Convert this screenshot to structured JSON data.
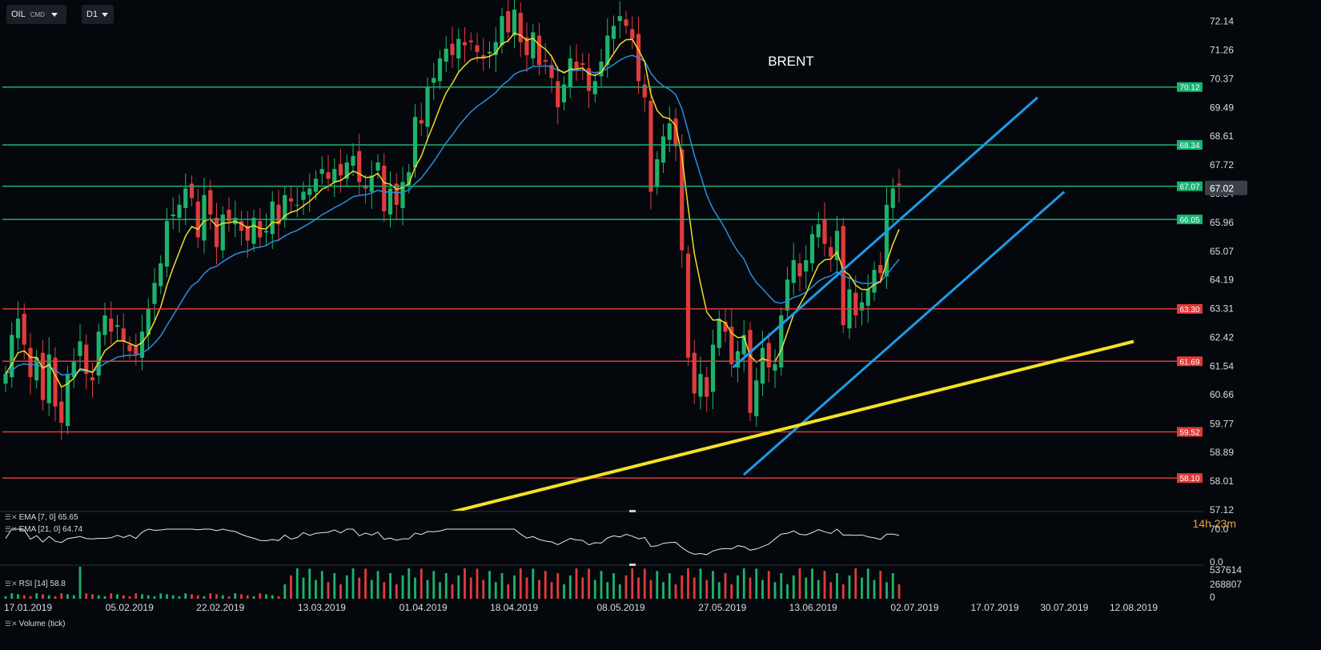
{
  "toolbar": {
    "symbol": "OIL",
    "symbol_tag": "CMD",
    "timeframe": "D1"
  },
  "timer": {
    "hours": "14",
    "h": "h",
    "minutes": "23",
    "m": "m"
  },
  "indicators": {
    "ema7": "EMA [7, 0]  65.65",
    "ema21": "EMA [21, 0]  64.74",
    "rsi": "RSI [14]  58.8",
    "volume": "Volume (tick)"
  },
  "chart_data": {
    "type": "candlestick",
    "title": "BRENT",
    "symbol": "OIL",
    "timeframe": "D1",
    "ylim": [
      57.12,
      72.5
    ],
    "y_ticks": [
      "72.14",
      "71.26",
      "70.37",
      "69.49",
      "68.61",
      "67.72",
      "66.84",
      "65.96",
      "65.07",
      "64.19",
      "63.31",
      "62.42",
      "61.54",
      "60.66",
      "59.77",
      "58.89",
      "58.01",
      "57.12"
    ],
    "x_ticks": [
      "17.01.2019",
      "05.02.2019",
      "22.02.2019",
      "13.03.2019",
      "01.04.2019",
      "18.04.2019",
      "08.05.2019",
      "27.05.2019",
      "13.06.2019",
      "02.07.2019",
      "17.07.2019",
      "30.07.2019",
      "12.08.2019"
    ],
    "current_price": "67.02",
    "horizontal_levels": [
      {
        "value": 70.12,
        "label": "70.12",
        "color": "#18b273"
      },
      {
        "value": 68.34,
        "label": "68.34",
        "color": "#18b273"
      },
      {
        "value": 67.07,
        "label": "67.07",
        "color": "#18b273"
      },
      {
        "value": 66.05,
        "label": "66.05",
        "color": "#18b273"
      },
      {
        "value": 63.3,
        "label": "63.30",
        "color": "#e03a3a"
      },
      {
        "value": 61.69,
        "label": "61.69",
        "color": "#e03a3a"
      },
      {
        "value": 59.52,
        "label": "59.52",
        "color": "#e03a3a"
      },
      {
        "value": 58.1,
        "label": "58.10",
        "color": "#e03a3a"
      }
    ],
    "closes": [
      61.3,
      62.5,
      63.0,
      62.2,
      61.2,
      61.8,
      60.5,
      61.9,
      60.3,
      59.8,
      61.3,
      61.7,
      62.3,
      61.3,
      61.1,
      62.6,
      63.1,
      62.6,
      62.8,
      62.3,
      62.0,
      61.9,
      62.6,
      63.3,
      64.1,
      64.7,
      66.0,
      66.2,
      66.5,
      67.0,
      66.7,
      65.5,
      66.8,
      66.2,
      65.2,
      66.2,
      66.0,
      66.1,
      65.7,
      65.4,
      66.1,
      65.5,
      65.7,
      66.6,
      65.9,
      66.8,
      66.6,
      66.5,
      66.9,
      67.0,
      67.3,
      67.6,
      67.3,
      67.6,
      67.4,
      67.8,
      68.0,
      67.2,
      67.0,
      67.4,
      67.8,
      66.3,
      67.0,
      66.5,
      67.2,
      67.5,
      69.2,
      69.0,
      70.1,
      70.4,
      71.0,
      71.3,
      71.1,
      71.6,
      71.4,
      71.5,
      71.2,
      71.0,
      71.2,
      71.5,
      72.3,
      71.8,
      72.5,
      71.5,
      71.1,
      71.8,
      70.8,
      70.9,
      70.4,
      69.5,
      70.2,
      71.0,
      70.7,
      70.8,
      70.0,
      70.3,
      70.9,
      71.7,
      72.0,
      72.3,
      72.0,
      71.6,
      70.3,
      69.8,
      66.9,
      67.9,
      68.6,
      69.0,
      68.3,
      65.1,
      61.8,
      60.7,
      61.3,
      60.6,
      62.2,
      63.0,
      62.6,
      61.6,
      62.0,
      62.5,
      60.1,
      61.1,
      62.1,
      61.5,
      61.6,
      63.1,
      64.2,
      64.8,
      64.3,
      64.8,
      65.6,
      65.9,
      65.3,
      64.9,
      65.7,
      62.8,
      63.9,
      63.1,
      63.5,
      63.9,
      64.5,
      64.4,
      66.5,
      67.0,
      67.1
    ],
    "ema7_last": 65.65,
    "ema21_last": 64.74,
    "rsi": {
      "period": 14,
      "last": 58.8,
      "levels": [
        70.0,
        0.0
      ]
    },
    "volume_ticks": [
      "537614",
      "268807",
      "0"
    ],
    "channel_lines": {
      "color": "#1e9be8",
      "upper": [
        [
          "29.05.2019",
          61.5
        ],
        [
          "25.07.2019",
          69.8
        ]
      ],
      "lower": [
        [
          "31.05.2019",
          58.2
        ],
        [
          "30.07.2019",
          66.9
        ]
      ]
    },
    "trend_line": {
      "color": "#f4e21e",
      "points": [
        [
          "05.04.2019",
          57.0
        ],
        [
          "12.08.2019",
          62.3
        ]
      ]
    }
  }
}
